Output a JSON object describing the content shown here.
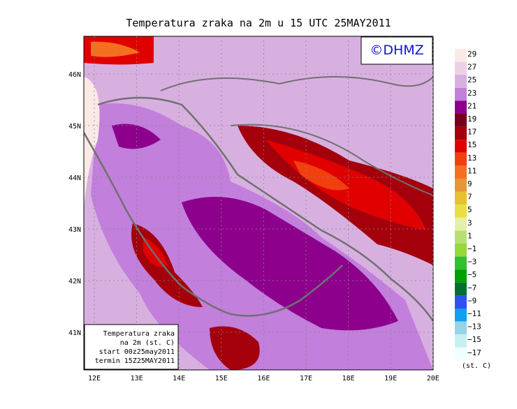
{
  "title": "Temperatura zraka na 2m u 15 UTC 25MAY2011",
  "copyright": "©DHMZ",
  "lon_ticks": [
    "12E",
    "13E",
    "14E",
    "15E",
    "16E",
    "17E",
    "18E",
    "19E",
    "20E"
  ],
  "lat_ticks": [
    "46N",
    "45N",
    "44N",
    "43N",
    "42N",
    "41N"
  ],
  "legend": {
    "unit": "(st. C)",
    "entries": [
      {
        "label": "29",
        "color": "#fbe9e6"
      },
      {
        "label": "27",
        "color": "#ecd0e6"
      },
      {
        "label": "25",
        "color": "#d8b0e0"
      },
      {
        "label": "23",
        "color": "#c27fdc"
      },
      {
        "label": "21",
        "color": "#8c008c"
      },
      {
        "label": "19",
        "color": "#760018"
      },
      {
        "label": "17",
        "color": "#a4000c"
      },
      {
        "label": "15",
        "color": "#e00000"
      },
      {
        "label": "13",
        "color": "#f04010"
      },
      {
        "label": "11",
        "color": "#f47020"
      },
      {
        "label": "9",
        "color": "#e89438"
      },
      {
        "label": "7",
        "color": "#e8c030"
      },
      {
        "label": "5",
        "color": "#e8e040"
      },
      {
        "label": "3",
        "color": "#e4f0a8"
      },
      {
        "label": "1",
        "color": "#b8e070"
      },
      {
        "label": "−1",
        "color": "#98d838"
      },
      {
        "label": "−3",
        "color": "#30c030"
      },
      {
        "label": "−5",
        "color": "#00a000"
      },
      {
        "label": "−7",
        "color": "#007030"
      },
      {
        "label": "−9",
        "color": "#3050f0"
      },
      {
        "label": "−11",
        "color": "#10a0f0"
      },
      {
        "label": "−13",
        "color": "#98d4e4"
      },
      {
        "label": "−15",
        "color": "#c8f0f0"
      },
      {
        "label": "−17",
        "color": "#f0ffff"
      }
    ]
  },
  "info_box": [
    "Temperatura zraka",
    "na 2m (st. C)",
    "start 00z25may2011",
    "termin 15Z25MAY2011"
  ]
}
